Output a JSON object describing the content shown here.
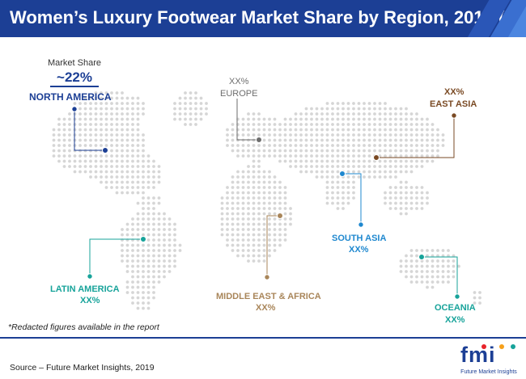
{
  "title": "Women’s Luxury Footwear Market Share by Region, 2019 (E)",
  "colors": {
    "title_bg": "#1c3f95",
    "map_dots": "#d6d6d6",
    "north_america": "#1c3f95",
    "europe": "#6e6e6e",
    "east_asia": "#7a4a24",
    "south_asia": "#1f88cf",
    "latin_america": "#17a39a",
    "middle_east_africa": "#a9865a",
    "oceania": "#17a39a"
  },
  "market_share": {
    "caption": "Market Share",
    "value": "~22%"
  },
  "regions": [
    {
      "key": "north_america",
      "name": "NORTH AMERICA",
      "value": "~22%"
    },
    {
      "key": "europe",
      "name": "EUROPE",
      "value": "XX%"
    },
    {
      "key": "east_asia",
      "name": "EAST ASIA",
      "value": "XX%"
    },
    {
      "key": "south_asia",
      "name": "SOUTH ASIA",
      "value": "XX%"
    },
    {
      "key": "latin_america",
      "name": "LATIN AMERICA",
      "value": "XX%"
    },
    {
      "key": "middle_east_africa",
      "name": "MIDDLE EAST & AFRICA",
      "value": "XX%"
    },
    {
      "key": "oceania",
      "name": "OCEANIA",
      "value": "XX%"
    }
  ],
  "note": "*Redacted figures available in the report",
  "source": "Source – Future Market Insights, 2019",
  "logo": {
    "text": "fmi",
    "wordmark": "Future Market Insights",
    "dot_colors": [
      "#e8242a",
      "#f6a01a",
      "#17a39a"
    ]
  }
}
